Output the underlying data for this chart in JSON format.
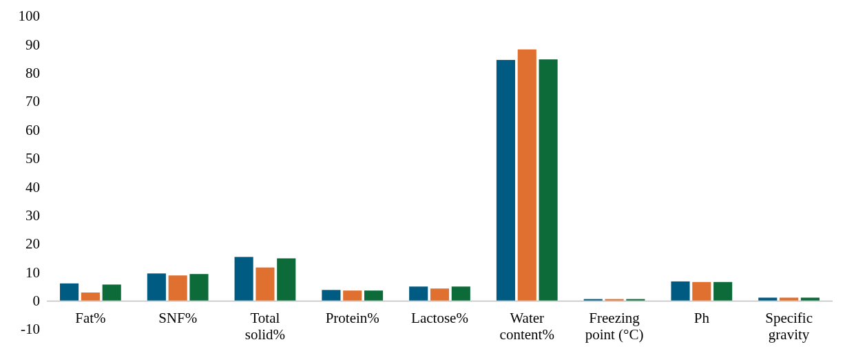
{
  "chart_data": {
    "type": "bar",
    "categories": [
      "Fat%",
      "SNF%",
      "Total solid%",
      "Protein%",
      "Lactose%",
      "Water content%",
      "Freezing point (°C)",
      "Ph",
      "Specific gravity"
    ],
    "series": [
      {
        "color": "#005b82",
        "values": [
          6.0,
          9.5,
          15.3,
          3.7,
          4.9,
          84.5,
          0.5,
          6.7,
          1.0
        ]
      },
      {
        "color": "#e07030",
        "values": [
          2.8,
          8.8,
          11.6,
          3.5,
          4.2,
          88.2,
          0.5,
          6.5,
          1.0
        ]
      },
      {
        "color": "#0d6b3a",
        "values": [
          5.6,
          9.3,
          14.8,
          3.5,
          4.9,
          84.7,
          0.5,
          6.5,
          1.0
        ]
      }
    ],
    "ylim": [
      -10,
      100
    ],
    "yticks": [
      -10,
      0,
      10,
      20,
      30,
      40,
      50,
      60,
      70,
      80,
      90,
      100
    ]
  }
}
